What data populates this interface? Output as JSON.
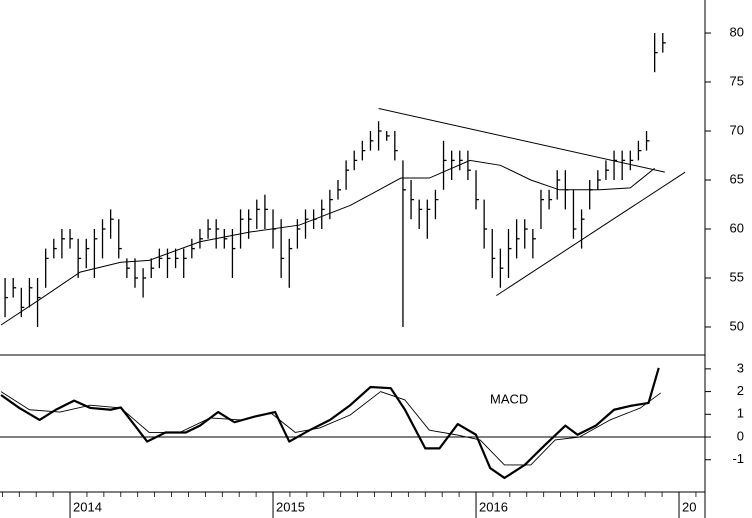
{
  "chart_data": [
    {
      "type": "ohlc",
      "xlim": [
        2013.655,
        2017.128
      ],
      "ylim": [
        47.14,
        83.37
      ],
      "yticks": [
        50,
        55,
        60,
        65,
        70,
        75,
        80
      ],
      "color": "#000000",
      "x": [
        2013.68,
        2013.72,
        2013.76,
        2013.8,
        2013.84,
        2013.88,
        2013.92,
        2013.96,
        2014,
        2014.04,
        2014.08,
        2014.12,
        2014.16,
        2014.2,
        2014.24,
        2014.28,
        2014.32,
        2014.36,
        2014.4,
        2014.44,
        2014.48,
        2014.52,
        2014.56,
        2014.6,
        2014.64,
        2014.68,
        2014.72,
        2014.76,
        2014.8,
        2014.84,
        2014.88,
        2014.92,
        2014.96,
        2015,
        2015.04,
        2015.08,
        2015.12,
        2015.16,
        2015.2,
        2015.24,
        2015.28,
        2015.32,
        2015.36,
        2015.4,
        2015.44,
        2015.48,
        2015.52,
        2015.56,
        2015.6,
        2015.64,
        2015.68,
        2015.72,
        2015.76,
        2015.8,
        2015.84,
        2015.88,
        2015.92,
        2015.96,
        2016,
        2016.04,
        2016.08,
        2016.12,
        2016.16,
        2016.2,
        2016.24,
        2016.28,
        2016.32,
        2016.36,
        2016.4,
        2016.44,
        2016.48,
        2016.52,
        2016.56,
        2016.6,
        2016.64,
        2016.68,
        2016.72,
        2016.76,
        2016.8,
        2016.84,
        2016.88,
        2016.92
      ],
      "high": [
        55,
        55,
        54,
        55,
        55,
        58,
        59,
        60,
        60,
        59,
        59,
        60,
        61,
        62,
        61,
        57,
        57,
        56,
        57,
        58,
        58,
        58,
        58,
        59,
        60,
        61,
        61,
        60,
        60,
        62,
        62,
        63,
        63.5,
        62,
        61,
        59,
        61,
        62,
        62,
        63,
        64,
        65,
        67,
        68,
        69,
        70,
        71,
        70,
        70,
        67,
        65,
        63,
        63,
        64,
        69,
        68,
        68,
        68,
        66,
        63,
        60,
        58,
        60,
        61,
        61,
        60,
        64,
        64,
        66,
        66,
        64,
        62,
        65,
        66,
        67,
        68,
        68,
        68,
        69,
        70,
        80,
        80
      ],
      "low": [
        51,
        53,
        51,
        52,
        50,
        54,
        57,
        57,
        58,
        55,
        56,
        55,
        57,
        59,
        57,
        55,
        54,
        53,
        55,
        56,
        55,
        56,
        55,
        57,
        58,
        59,
        58,
        58,
        55,
        58,
        59,
        60,
        60,
        58,
        55,
        54,
        58,
        59,
        60,
        60,
        61,
        63,
        64,
        66,
        67,
        68,
        68,
        69,
        67,
        50,
        61,
        60,
        59,
        61,
        64,
        65,
        66,
        65,
        62,
        58,
        55,
        54,
        55,
        57,
        58,
        57,
        60,
        62,
        63,
        62,
        59,
        58,
        62,
        64,
        65,
        65,
        65,
        66,
        67,
        68,
        76,
        78
      ],
      "close": [
        53,
        54,
        52,
        54,
        53,
        57,
        58,
        59,
        59,
        57,
        58,
        59,
        60,
        61,
        58,
        56,
        55,
        55,
        56,
        57,
        57,
        57,
        57,
        58,
        59,
        60,
        60,
        59,
        58,
        61,
        61,
        62,
        62,
        60,
        57,
        58,
        60,
        61,
        61,
        62,
        63,
        64,
        66,
        67,
        68,
        69,
        70,
        69.5,
        68,
        64,
        63,
        62,
        62,
        63,
        67,
        67,
        67,
        66,
        63,
        60,
        57,
        56,
        58,
        59,
        60,
        59,
        63,
        63,
        65,
        64,
        60,
        61,
        64,
        65,
        66,
        67,
        67,
        67,
        68,
        69,
        78,
        79
      ],
      "ma": {
        "x": [
          2013.66,
          2013.85,
          2014.05,
          2014.25,
          2014.39,
          2014.64,
          2014.89,
          2015.13,
          2015.38,
          2015.63,
          2015.77,
          2015.97,
          2016.12,
          2016.27,
          2016.41,
          2016.61,
          2016.76,
          2016.88
        ],
        "values": [
          50.2,
          52.8,
          55.6,
          56.6,
          56.8,
          58.7,
          59.7,
          60.4,
          62.4,
          65.2,
          65.2,
          67,
          66.5,
          65,
          64,
          64,
          64.2,
          66.2
        ]
      },
      "trendlines": [
        {
          "x": [
            2015.52,
            2016.93
          ],
          "y": [
            72.3,
            65.8
          ]
        },
        {
          "x": [
            2016.1,
            2017.03
          ],
          "y": [
            53.2,
            65.8
          ]
        }
      ]
    },
    {
      "type": "line",
      "annotation": "MACD",
      "xlim": [
        2013.655,
        2017.128
      ],
      "ylim": [
        -2.42,
        3.61
      ],
      "yticks": [
        -1,
        0,
        1,
        2,
        3
      ],
      "xticks": [
        2014,
        2015,
        2016,
        {
          "value": 2017,
          "label": "20"
        }
      ],
      "series": [
        {
          "color": "#000000",
          "width": 2.2,
          "x": [
            2013.66,
            2013.75,
            2013.85,
            2013.93,
            2014.02,
            2014.1,
            2014.2,
            2014.25,
            2014.32,
            2014.38,
            2014.47,
            2014.57,
            2014.64,
            2014.73,
            2014.81,
            2014.91,
            2015.01,
            2015.08,
            2015.18,
            2015.28,
            2015.38,
            2015.48,
            2015.58,
            2015.65,
            2015.75,
            2015.82,
            2015.91,
            2016,
            2016.07,
            2016.14,
            2016.24,
            2016.34,
            2016.44,
            2016.5,
            2016.59,
            2016.68,
            2016.76,
            2016.85,
            2016.9
          ],
          "values": [
            1.85,
            1.28,
            0.75,
            1.2,
            1.6,
            1.28,
            1.2,
            1.3,
            0.5,
            -0.2,
            0.2,
            0.2,
            0.5,
            1.1,
            0.65,
            0.9,
            1.1,
            -0.2,
            0.3,
            0.75,
            1.4,
            2.2,
            2.15,
            1.2,
            -0.5,
            -0.5,
            0.57,
            0.1,
            -1.37,
            -1.8,
            -1.23,
            -0.35,
            0.5,
            0.1,
            0.5,
            1.2,
            1.37,
            1.5,
            3.04
          ]
        },
        {
          "color": "#000000",
          "width": 0.9,
          "x": [
            2013.66,
            2013.8,
            2013.95,
            2014.1,
            2014.25,
            2014.39,
            2014.54,
            2014.69,
            2014.84,
            2014.99,
            2015.11,
            2015.23,
            2015.38,
            2015.53,
            2015.65,
            2015.77,
            2015.9,
            2016.02,
            2016.14,
            2016.27,
            2016.39,
            2016.51,
            2016.66,
            2016.81,
            2016.91
          ],
          "values": [
            2,
            1.2,
            1.1,
            1.4,
            1.28,
            0.2,
            0.2,
            0.84,
            0.75,
            1.05,
            0.2,
            0.4,
            0.97,
            2,
            1.63,
            0.3,
            0.1,
            -0.13,
            -1.23,
            -1.23,
            -0.13,
            0,
            0.75,
            1.28,
            1.94
          ]
        }
      ]
    }
  ]
}
